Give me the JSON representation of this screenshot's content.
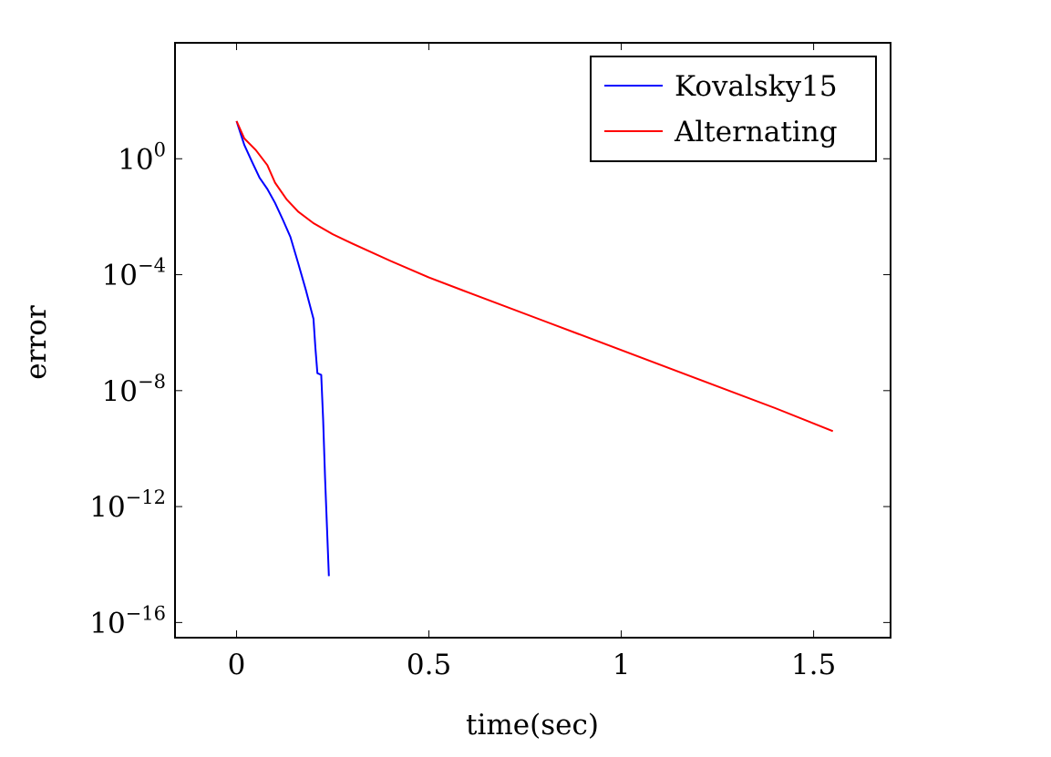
{
  "chart_data": {
    "type": "line",
    "title": "",
    "xlabel": "time(sec)",
    "ylabel": "error",
    "y_scale": "log",
    "xlim": [
      -0.16,
      1.7
    ],
    "ylim": [
      3e-17,
      10000
    ],
    "x_ticks": [
      {
        "value": 0,
        "label": "0"
      },
      {
        "value": 0.5,
        "label": "0.5"
      },
      {
        "value": 1,
        "label": "1"
      },
      {
        "value": 1.5,
        "label": "1.5"
      }
    ],
    "y_ticks": [
      {
        "value": 1,
        "base": "10",
        "exp": "0"
      },
      {
        "value": 0.0001,
        "base": "10",
        "exp": "−4"
      },
      {
        "value": 1e-08,
        "base": "10",
        "exp": "−8"
      },
      {
        "value": 1e-12,
        "base": "10",
        "exp": "−12"
      },
      {
        "value": 1e-16,
        "base": "10",
        "exp": "−16"
      }
    ],
    "grid": false,
    "legend_position": "top-right",
    "series": [
      {
        "name": "Kovalsky15",
        "color": "#0000ff",
        "x": [
          0.0,
          0.02,
          0.04,
          0.06,
          0.08,
          0.1,
          0.12,
          0.14,
          0.16,
          0.18,
          0.2,
          0.205,
          0.21,
          0.22,
          0.225,
          0.23,
          0.24
        ],
        "y": [
          20,
          3,
          0.8,
          0.22,
          0.09,
          0.03,
          0.008,
          0.002,
          0.00025,
          3e-05,
          3e-06,
          3e-07,
          4e-08,
          3.5e-08,
          1e-09,
          1e-11,
          4e-15
        ]
      },
      {
        "name": "Alternating",
        "color": "#ff0000",
        "x": [
          0.0,
          0.02,
          0.05,
          0.08,
          0.1,
          0.13,
          0.16,
          0.2,
          0.25,
          0.3,
          0.4,
          0.5,
          0.6,
          0.8,
          1.0,
          1.2,
          1.4,
          1.55
        ],
        "y": [
          20,
          5,
          2,
          0.6,
          0.15,
          0.04,
          0.015,
          0.006,
          0.0025,
          0.0012,
          0.0003,
          8e-05,
          2.5e-05,
          2.5e-06,
          2.5e-07,
          2.5e-08,
          2.5e-09,
          4e-10
        ]
      }
    ]
  }
}
